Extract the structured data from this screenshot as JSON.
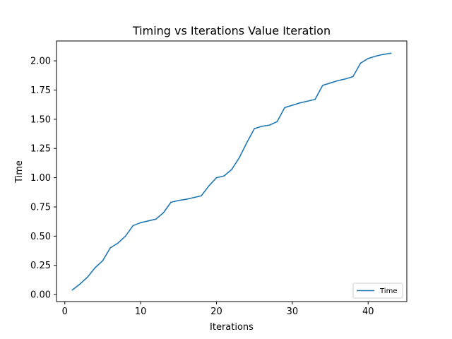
{
  "chart_data": {
    "type": "line",
    "title": "Timing vs Iterations Value Iteration",
    "xlabel": "Iterations",
    "ylabel": "Time",
    "xlim": [
      -1.1,
      45.1
    ],
    "ylim": [
      -0.06,
      2.17
    ],
    "xticks": [
      0,
      10,
      20,
      30,
      40
    ],
    "xtick_labels": [
      "0",
      "10",
      "20",
      "30",
      "40"
    ],
    "yticks": [
      0.0,
      0.25,
      0.5,
      0.75,
      1.0,
      1.25,
      1.5,
      1.75,
      2.0
    ],
    "ytick_labels": [
      "0.00",
      "0.25",
      "0.50",
      "0.75",
      "1.00",
      "1.25",
      "1.50",
      "1.75",
      "2.00"
    ],
    "legend_position": "lower-right",
    "grid": false,
    "series": [
      {
        "name": "Time",
        "color": "#1f77b4",
        "x": [
          1,
          2,
          3,
          4,
          5,
          6,
          7,
          8,
          9,
          10,
          11,
          12,
          13,
          14,
          15,
          16,
          17,
          18,
          19,
          20,
          21,
          22,
          23,
          24,
          25,
          26,
          27,
          28,
          29,
          30,
          31,
          32,
          33,
          34,
          35,
          36,
          37,
          38,
          39,
          40,
          41,
          42,
          43
        ],
        "values": [
          0.04,
          0.09,
          0.15,
          0.23,
          0.29,
          0.4,
          0.44,
          0.5,
          0.59,
          0.615,
          0.63,
          0.645,
          0.7,
          0.79,
          0.805,
          0.815,
          0.83,
          0.845,
          0.93,
          1.0,
          1.015,
          1.07,
          1.17,
          1.3,
          1.42,
          1.44,
          1.45,
          1.48,
          1.6,
          1.62,
          1.64,
          1.655,
          1.67,
          1.79,
          1.81,
          1.83,
          1.845,
          1.865,
          1.98,
          2.02,
          2.04,
          2.055,
          2.065
        ]
      }
    ]
  }
}
